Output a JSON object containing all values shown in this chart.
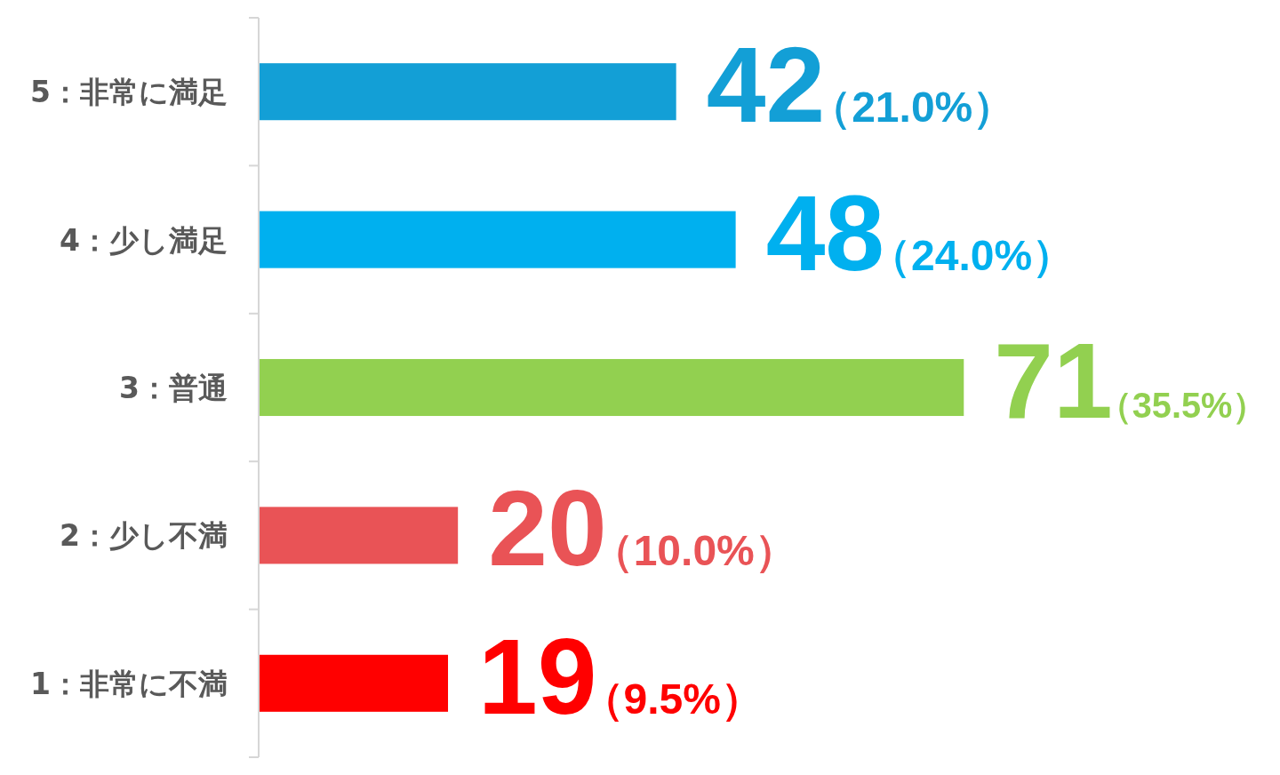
{
  "chart_data": {
    "type": "bar",
    "orientation": "horizontal",
    "categories": [
      "5：非常に満足",
      "4：少し満足",
      "3：普通",
      "2：少し不満",
      "1：非常に不満"
    ],
    "values": [
      42,
      48,
      71,
      20,
      19
    ],
    "colors": [
      "#139fd6",
      "#00b0ef",
      "#92d050",
      "#e95356",
      "#ff0000"
    ],
    "value_labels": [
      "42（21.0%）",
      "48（24.0%）",
      "71（35.5%）",
      "20（10.0%）",
      "19（9.5%）"
    ],
    "tick_labels": "y"
  }
}
